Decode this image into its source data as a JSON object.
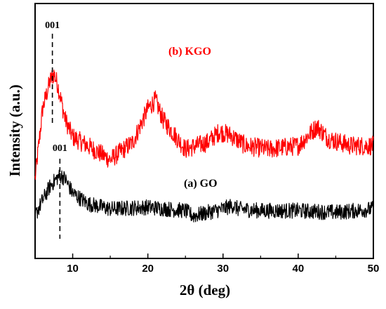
{
  "chart_data": {
    "type": "line",
    "xlabel": "2θ (deg)",
    "ylabel": "Intensity (a.u.)",
    "xlim": [
      5,
      50
    ],
    "x_ticks": [
      "10",
      "20",
      "30",
      "40",
      "50"
    ],
    "y_ticks_labeled": false,
    "grid": false,
    "legend": "none",
    "series": [
      {
        "name": "(b) KGO",
        "color": "#ff0000",
        "x": [
          5,
          6,
          7,
          7.5,
          8,
          9,
          10,
          12,
          15,
          18,
          20,
          21,
          22,
          25,
          28,
          29.5,
          31,
          33,
          36,
          40,
          42.5,
          44,
          47,
          50
        ],
        "y": [
          2.6,
          6.6,
          8.2,
          8.6,
          8.0,
          6.0,
          5.0,
          4.5,
          3.7,
          4.7,
          6.6,
          7.1,
          6.0,
          4.3,
          4.7,
          5.3,
          5.1,
          4.5,
          4.3,
          4.5,
          5.6,
          4.9,
          4.5,
          4.5
        ]
      },
      {
        "name": "(a) GO",
        "color": "#000000",
        "x": [
          5,
          6,
          7,
          8,
          8.5,
          9,
          10,
          12,
          15,
          20,
          25,
          26,
          30,
          31.3,
          32,
          35,
          40,
          45,
          50
        ],
        "y": [
          0.5,
          1.4,
          2.2,
          2.7,
          2.8,
          2.6,
          1.8,
          1.2,
          0.9,
          1.0,
          0.8,
          0.5,
          0.9,
          1.1,
          0.9,
          0.8,
          0.8,
          0.7,
          0.9
        ]
      }
    ],
    "annotations": [
      {
        "text": "001",
        "x": 7.3
      },
      {
        "text": "001",
        "x": 8.3
      }
    ],
    "labels": {
      "kgo": "(b) KGO",
      "go": "(a) GO"
    }
  }
}
